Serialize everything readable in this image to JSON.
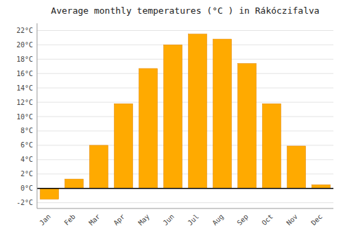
{
  "chart_data": {
    "type": "bar",
    "title": "Average monthly temperatures (°C ) in Rákóczifalva",
    "categories": [
      "Jan",
      "Feb",
      "Mar",
      "Apr",
      "May",
      "Jun",
      "Jul",
      "Aug",
      "Sep",
      "Oct",
      "Nov",
      "Dec"
    ],
    "values": [
      -1.5,
      1.3,
      6.0,
      11.8,
      16.7,
      20.0,
      21.5,
      20.8,
      17.4,
      11.8,
      5.9,
      0.5
    ],
    "color": "#FFAA00",
    "ylim": [
      -2.8,
      23.0
    ],
    "yticks": [
      {
        "value": -2,
        "label": "-2°C"
      },
      {
        "value": 0,
        "label": "0°C"
      },
      {
        "value": 2,
        "label": "2°C"
      },
      {
        "value": 4,
        "label": "4°C"
      },
      {
        "value": 6,
        "label": "6°C"
      },
      {
        "value": 8,
        "label": "8°C"
      },
      {
        "value": 10,
        "label": "10°C"
      },
      {
        "value": 12,
        "label": "12°C"
      },
      {
        "value": 14,
        "label": "14°C"
      },
      {
        "value": 16,
        "label": "16°C"
      },
      {
        "value": 18,
        "label": "18°C"
      },
      {
        "value": 20,
        "label": "20°C"
      },
      {
        "value": 22,
        "label": "22°C"
      }
    ],
    "grid": true
  }
}
